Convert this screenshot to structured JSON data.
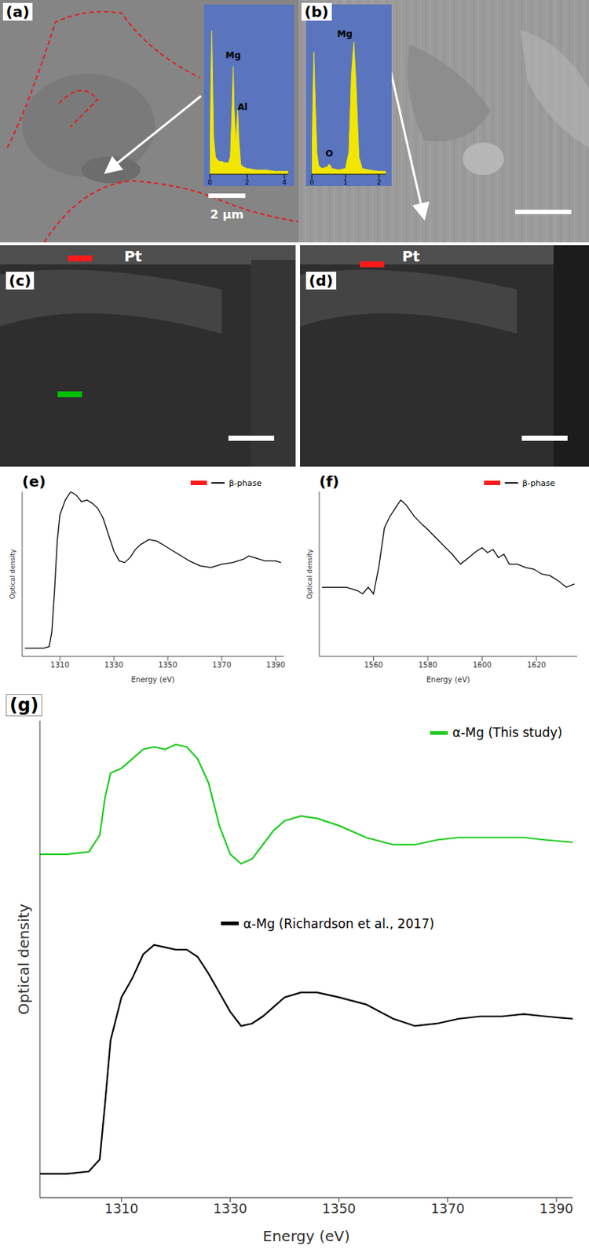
{
  "panels": {
    "a": {
      "letter": "(a)",
      "scale_bar": "2 µm",
      "outline_color": "#e02020"
    },
    "b": {
      "letter": "(b)"
    },
    "c": {
      "letter": "(c)",
      "label": "Pt",
      "markers": [
        {
          "color": "#ff1a1a"
        },
        {
          "color": "#00c000"
        }
      ]
    },
    "d": {
      "letter": "(d)",
      "label": "Pt",
      "markers": [
        {
          "color": "#ff1a1a"
        }
      ]
    },
    "e": {
      "letter": "(e)"
    },
    "f": {
      "letter": "(f)"
    },
    "g": {
      "letter": "(g)"
    }
  },
  "chart_data": [
    {
      "type": "area",
      "x": [
        0,
        0.05,
        0.1,
        0.15,
        0.2,
        0.3,
        0.4,
        0.5,
        0.6,
        0.8,
        1.0,
        1.1,
        1.2,
        1.25,
        1.3,
        1.4,
        1.45,
        1.49,
        1.55,
        1.65,
        1.8,
        2.0,
        2.5,
        3.0,
        3.5,
        4.0,
        4.2
      ],
      "values": [
        0.05,
        0.6,
        1.0,
        0.6,
        0.25,
        0.12,
        0.1,
        0.09,
        0.09,
        0.08,
        0.08,
        0.12,
        0.5,
        0.75,
        0.45,
        0.2,
        0.35,
        0.45,
        0.25,
        0.07,
        0.05,
        0.04,
        0.03,
        0.03,
        0.02,
        0.02,
        0.02
      ],
      "color": "#f2e600",
      "xlim": [
        0,
        4.2
      ],
      "xticks": [
        0,
        2,
        4
      ],
      "ylim": [
        0,
        1.15
      ],
      "tick_labels": "x",
      "grid": false,
      "annotations": [
        {
          "x": 1.25,
          "y": 0.78,
          "text": "Mg"
        },
        {
          "x": 1.75,
          "y": 0.42,
          "text": "Al"
        }
      ]
    },
    {
      "type": "area",
      "x": [
        0,
        0.03,
        0.06,
        0.1,
        0.15,
        0.2,
        0.3,
        0.45,
        0.52,
        0.6,
        0.8,
        1.0,
        1.1,
        1.18,
        1.25,
        1.32,
        1.4,
        1.5,
        1.7,
        2.0,
        2.2
      ],
      "values": [
        0.02,
        0.5,
        0.85,
        0.5,
        0.15,
        0.06,
        0.04,
        0.05,
        0.07,
        0.04,
        0.03,
        0.04,
        0.15,
        0.7,
        0.92,
        0.6,
        0.12,
        0.04,
        0.03,
        0.02,
        0.02
      ],
      "color": "#f2e600",
      "xlim": [
        0,
        2.2
      ],
      "xticks": [
        0,
        1,
        2
      ],
      "ylim": [
        0,
        1.15
      ],
      "tick_labels": "x",
      "grid": false,
      "annotations": [
        {
          "x": 0.98,
          "y": 0.93,
          "text": "Mg"
        },
        {
          "x": 0.52,
          "y": 0.1,
          "text": "O"
        }
      ]
    },
    {
      "type": "line",
      "x_label": "Energy (eV)",
      "y_label": "Optical density",
      "x": [
        1297,
        1300,
        1304,
        1306,
        1307,
        1308,
        1309,
        1310,
        1312,
        1314,
        1316,
        1318,
        1320,
        1322,
        1324,
        1326,
        1328,
        1330,
        1332,
        1334,
        1336,
        1338,
        1340,
        1343,
        1346,
        1350,
        1354,
        1358,
        1362,
        1366,
        1370,
        1374,
        1378,
        1380,
        1382,
        1386,
        1390,
        1392
      ],
      "series": [
        {
          "name": "β-phase",
          "color": "#000000",
          "values": [
            0.05,
            0.05,
            0.05,
            0.06,
            0.15,
            0.4,
            0.7,
            0.86,
            0.95,
            1.0,
            0.98,
            0.94,
            0.95,
            0.93,
            0.9,
            0.84,
            0.74,
            0.64,
            0.58,
            0.57,
            0.6,
            0.65,
            0.68,
            0.71,
            0.7,
            0.66,
            0.62,
            0.58,
            0.55,
            0.54,
            0.56,
            0.57,
            0.59,
            0.61,
            0.6,
            0.58,
            0.58,
            0.57
          ]
        }
      ],
      "xlim": [
        1296,
        1393
      ],
      "xticks": [
        1310,
        1330,
        1350,
        1370,
        1390
      ],
      "ylim": [
        0,
        1
      ],
      "tick_labels": "x",
      "grid": false,
      "legend": "top-right"
    },
    {
      "type": "line",
      "x_label": "Energy (eV)",
      "y_label": "Optical density",
      "x": [
        1541,
        1545,
        1550,
        1554,
        1556,
        1558,
        1560,
        1562,
        1564,
        1566,
        1568,
        1570,
        1572,
        1575,
        1578,
        1580,
        1583,
        1586,
        1589,
        1592,
        1595,
        1598,
        1600,
        1602,
        1604,
        1606,
        1608,
        1610,
        1613,
        1616,
        1619,
        1622,
        1625,
        1628,
        1631,
        1634
      ],
      "series": [
        {
          "name": "β-phase",
          "color": "#000000",
          "values": [
            0.42,
            0.42,
            0.42,
            0.4,
            0.38,
            0.42,
            0.38,
            0.55,
            0.78,
            0.85,
            0.9,
            0.95,
            0.92,
            0.85,
            0.8,
            0.77,
            0.72,
            0.67,
            0.62,
            0.56,
            0.6,
            0.64,
            0.66,
            0.63,
            0.65,
            0.6,
            0.62,
            0.56,
            0.56,
            0.54,
            0.53,
            0.5,
            0.49,
            0.46,
            0.42,
            0.44
          ]
        }
      ],
      "xlim": [
        1540,
        1635
      ],
      "xticks": [
        1560,
        1580,
        1600,
        1620
      ],
      "ylim": [
        0,
        1
      ],
      "tick_labels": "x",
      "grid": false,
      "legend": "top-right"
    },
    {
      "type": "line",
      "x_label": "Energy (eV)",
      "y_label": "Optical density",
      "x": [
        1295,
        1300,
        1304,
        1306,
        1307,
        1308,
        1310,
        1312,
        1314,
        1316,
        1318,
        1320,
        1322,
        1324,
        1326,
        1328,
        1330,
        1332,
        1334,
        1336,
        1338,
        1340,
        1343,
        1346,
        1350,
        1355,
        1360,
        1364,
        1368,
        1372,
        1376,
        1380,
        1384,
        1388,
        1393
      ],
      "series": [
        {
          "name": "α-Mg (This study)",
          "color": "#22cc22",
          "values": [
            0.72,
            0.72,
            0.725,
            0.76,
            0.84,
            0.89,
            0.9,
            0.92,
            0.94,
            0.945,
            0.94,
            0.95,
            0.945,
            0.92,
            0.87,
            0.78,
            0.72,
            0.7,
            0.71,
            0.74,
            0.77,
            0.79,
            0.8,
            0.795,
            0.78,
            0.755,
            0.74,
            0.74,
            0.75,
            0.755,
            0.755,
            0.755,
            0.755,
            0.75,
            0.745
          ]
        },
        {
          "name": "α-Mg (Richardson et al., 2017)",
          "color": "#000000",
          "values": [
            0.05,
            0.05,
            0.055,
            0.08,
            0.2,
            0.33,
            0.42,
            0.46,
            0.51,
            0.53,
            0.525,
            0.52,
            0.52,
            0.505,
            0.47,
            0.43,
            0.39,
            0.36,
            0.365,
            0.38,
            0.4,
            0.42,
            0.43,
            0.43,
            0.42,
            0.405,
            0.375,
            0.36,
            0.365,
            0.375,
            0.38,
            0.38,
            0.385,
            0.38,
            0.375
          ]
        }
      ],
      "xlim": [
        1295,
        1393
      ],
      "xticks": [
        1310,
        1330,
        1350,
        1370,
        1390
      ],
      "ylim": [
        0,
        1
      ],
      "tick_labels": "x",
      "grid": false
    }
  ]
}
